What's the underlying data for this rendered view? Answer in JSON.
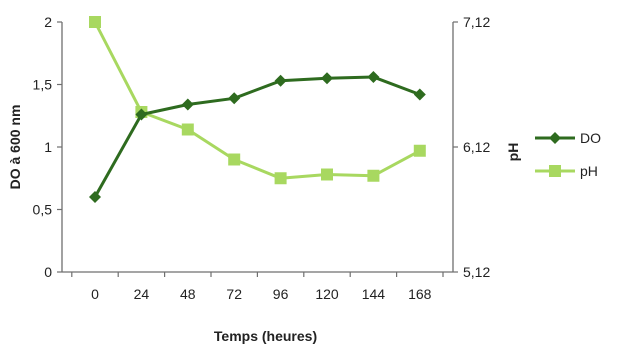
{
  "chart_data": {
    "type": "line",
    "x": [
      0,
      24,
      48,
      72,
      96,
      120,
      144,
      168
    ],
    "xticks": [
      "0",
      "24",
      "48",
      "72",
      "96",
      "120",
      "144",
      "168"
    ],
    "xlabel": "Temps (heures)",
    "ylabel_left": "DO à 600 nm",
    "ylabel_right": "pH",
    "yticks_left": [
      "0",
      "0,5",
      "1",
      "1,5",
      "2"
    ],
    "ylim_left": [
      0,
      2
    ],
    "yticks_right": [
      "5,12",
      "6,12",
      "7,12"
    ],
    "ylim_right": [
      5.12,
      7.12
    ],
    "grid": false,
    "legend_position": "right",
    "series": [
      {
        "name": "DO",
        "axis": "left",
        "marker": "diamond",
        "color": "#2e6b1f",
        "values": [
          0.6,
          1.26,
          1.34,
          1.39,
          1.53,
          1.55,
          1.56,
          1.42
        ]
      },
      {
        "name": "pH",
        "axis": "right",
        "marker": "square",
        "color": "#a8d860",
        "values": [
          7.12,
          6.4,
          6.26,
          6.02,
          5.87,
          5.9,
          5.89,
          6.09
        ]
      }
    ]
  }
}
